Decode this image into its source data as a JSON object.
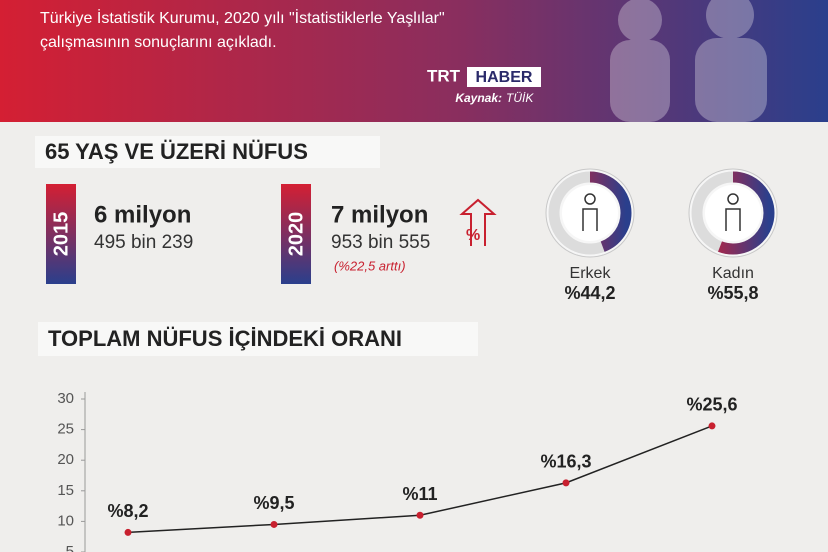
{
  "header": {
    "line1": "Türkiye İstatistik Kurumu, 2020 yılı \"İstatistiklerle Yaşlılar\"",
    "line2": "çalışmasının sonuçlarını açıkladı.",
    "brand_1": "TRT",
    "brand_2": "HABER",
    "source_label": "Kaynak:",
    "source": "TÜİK"
  },
  "section1": {
    "title": "65 YAŞ VE ÜZERİ NÜFUS",
    "stats": [
      {
        "year": "2015",
        "main": "6 milyon",
        "sub": "495 bin 239"
      },
      {
        "year": "2020",
        "main": "7 milyon",
        "sub": "953 bin 555",
        "note": "(%22,5 arttı)",
        "icon": "%"
      }
    ],
    "gender": [
      {
        "label": "Erkek",
        "value": 44.2,
        "value_label": "%44,2"
      },
      {
        "label": "Kadın",
        "value": 55.8,
        "value_label": "%55,8"
      }
    ]
  },
  "chart_data": {
    "type": "line",
    "title": "TOPLAM NÜFUS İÇİNDEKİ ORANI",
    "categories": [
      null,
      null,
      null,
      null,
      null
    ],
    "series": [
      {
        "name": null,
        "color": "#222222",
        "marker_color": "#c8202f",
        "values": [
          8.2,
          9.5,
          11,
          16.3,
          25.6
        ],
        "value_labels": [
          "%8,2",
          "%9,5",
          "%11",
          "%16,3",
          "%25,6"
        ]
      }
    ],
    "ylim": [
      5,
      30
    ],
    "yticks": [
      5,
      10,
      15,
      20,
      25,
      30
    ],
    "grid": false
  }
}
